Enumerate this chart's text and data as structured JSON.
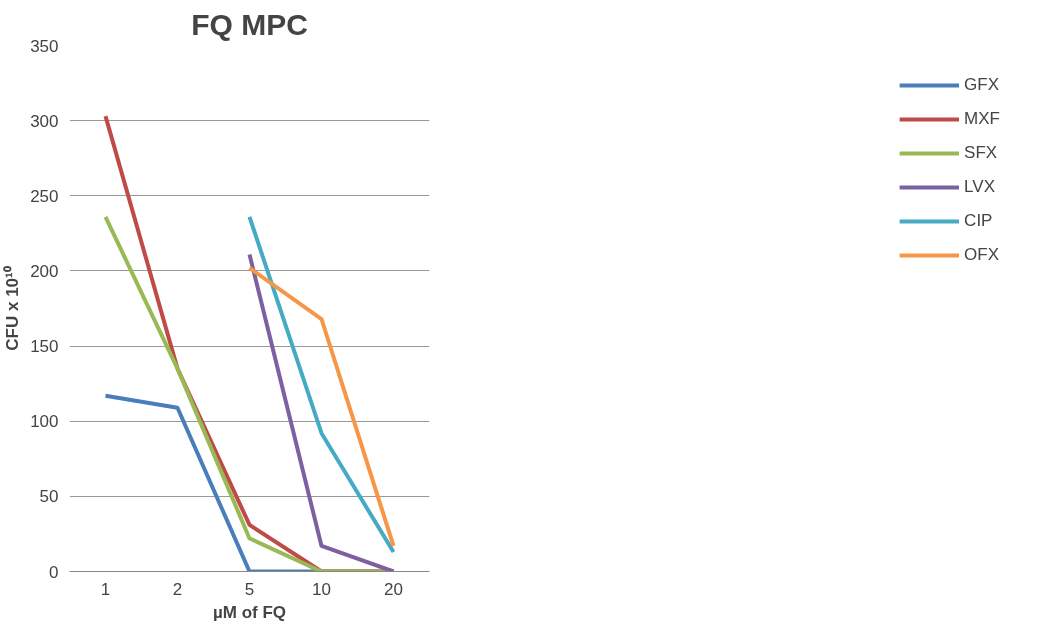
{
  "chart_data": {
    "type": "line",
    "title": "FQ MPC",
    "xlabel": "µM of FQ",
    "ylabel": "CFU x 10¹⁰",
    "categories": [
      "1",
      "2",
      "5",
      "10",
      "20"
    ],
    "series": [
      {
        "name": "GFX",
        "color": "#4a7ebb",
        "values": [
          117,
          109,
          0,
          0,
          0
        ]
      },
      {
        "name": "MXF",
        "color": "#be4b48",
        "values": [
          303,
          135,
          31,
          0,
          0
        ]
      },
      {
        "name": "SFX",
        "color": "#98b954",
        "values": [
          236,
          135,
          22,
          0,
          0
        ]
      },
      {
        "name": "LVX",
        "color": "#7d60a0",
        "values": [
          null,
          null,
          211,
          17,
          0
        ]
      },
      {
        "name": "CIP",
        "color": "#46aac5",
        "values": [
          null,
          null,
          236,
          92,
          13
        ]
      },
      {
        "name": "OFX",
        "color": "#f79646",
        "values": [
          null,
          null,
          202,
          168,
          17
        ]
      }
    ],
    "ylim": [
      0,
      350
    ],
    "yticks": [
      0,
      50,
      100,
      150,
      200,
      250,
      300,
      350
    ],
    "grid": "y",
    "legend": "right",
    "marker": "none",
    "line_style": "solid"
  }
}
